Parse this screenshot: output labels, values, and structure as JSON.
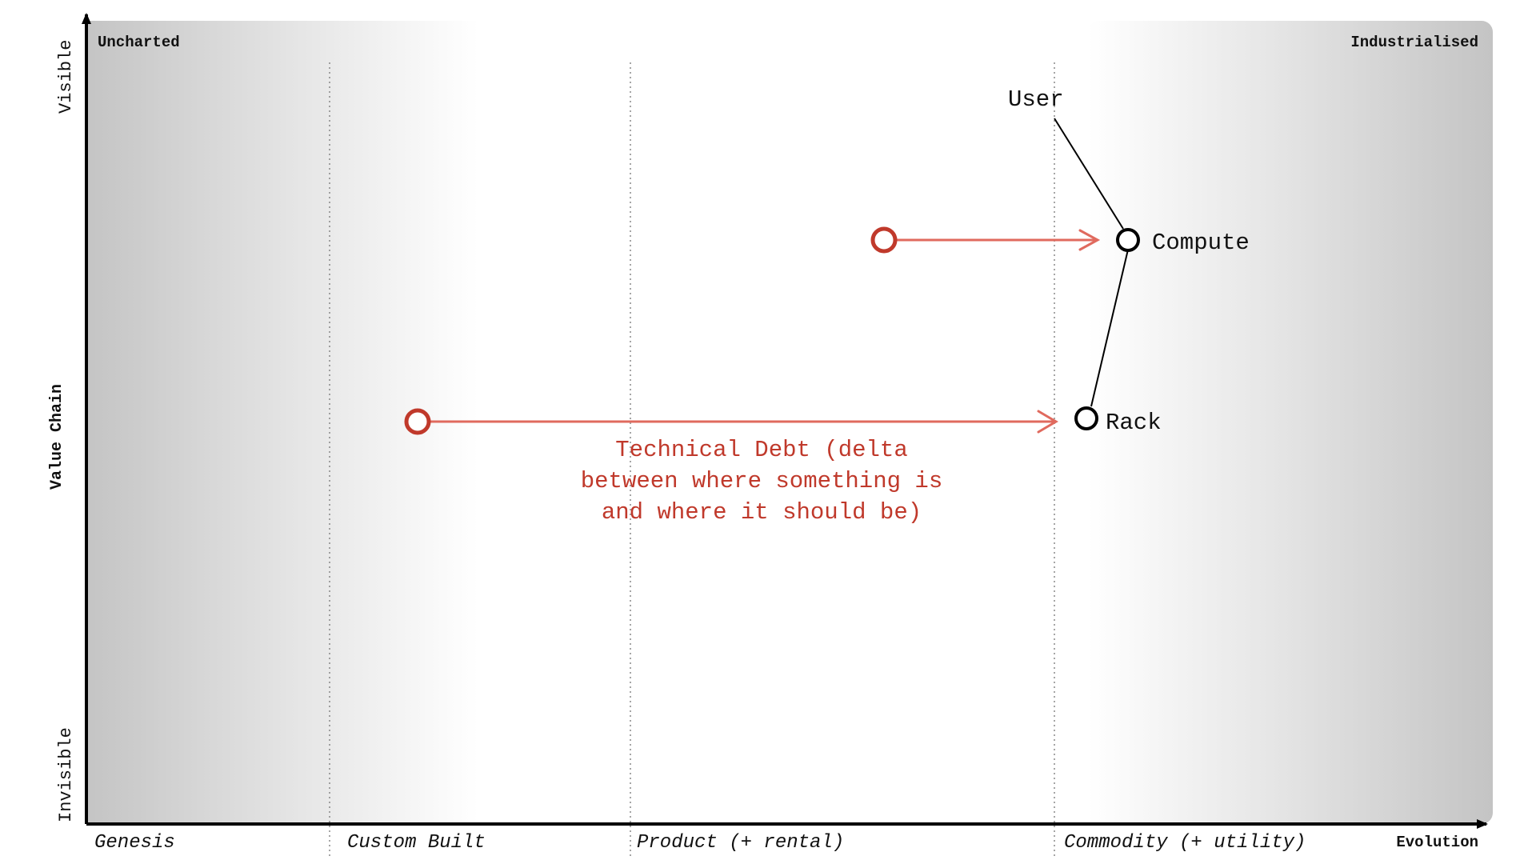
{
  "map": {
    "corners": {
      "left": "Uncharted",
      "right": "Industrialised"
    },
    "y_axis": {
      "title": "Value Chain",
      "top": "Visible",
      "bottom": "Invisible"
    },
    "x_axis": {
      "title": "Evolution",
      "stages": [
        "Genesis",
        "Custom Built",
        "Product (+ rental)",
        "Commodity (+ utility)"
      ]
    },
    "components": {
      "user": "User",
      "compute": "Compute",
      "rack": "Rack"
    },
    "annotation": {
      "lines": [
        "Technical Debt (delta",
        "between where something is",
        "and where it should be)"
      ]
    },
    "colors": {
      "accent": "#c0392b",
      "arrow": "#e06a5e",
      "axis": "#000000",
      "shade": "#c4c4c4"
    }
  }
}
